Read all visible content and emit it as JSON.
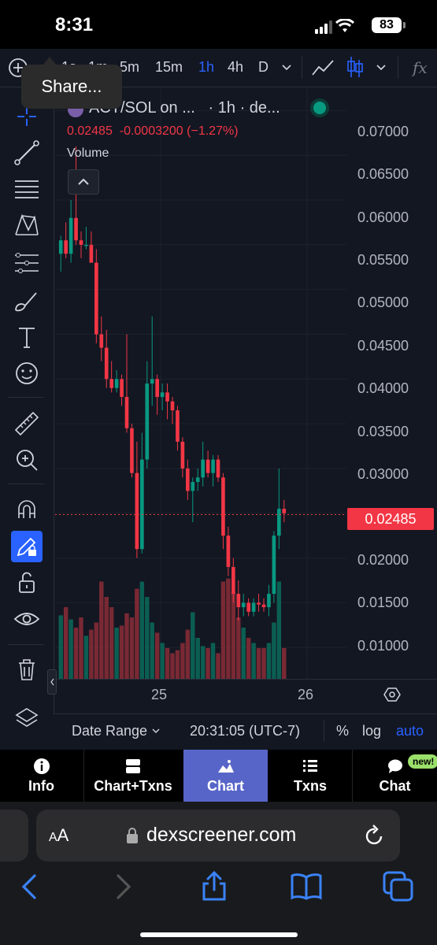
{
  "status_bar": {
    "time": "8:31",
    "battery": "83"
  },
  "toolbar": {
    "timeframes": [
      {
        "label": "1s",
        "active": false
      },
      {
        "label": "1m",
        "active": false
      },
      {
        "label": "5m",
        "active": false
      },
      {
        "label": "15m",
        "active": false
      },
      {
        "label": "1h",
        "active": true
      },
      {
        "label": "4h",
        "active": false
      },
      {
        "label": "D",
        "active": false
      }
    ],
    "fx_label": "fx"
  },
  "tooltip": {
    "text": "Share..."
  },
  "legend": {
    "title": "ACT/SOL on ...",
    "interval": "· 1h · de...",
    "last": "0.02485",
    "change": "-0.0003200",
    "change_pct": "(−1.27%)",
    "volume_label": "Volume"
  },
  "price_axis": [
    "0.07000",
    "0.06500",
    "0.06000",
    "0.05500",
    "0.05000",
    "0.04500",
    "0.04000",
    "0.03500",
    "0.03000",
    "0.02500",
    "0.02000",
    "0.01500",
    "0.01000"
  ],
  "current_price": "0.02485",
  "time_axis": [
    "25",
    "26"
  ],
  "bottom_bar": {
    "date_range": "Date Range",
    "clock": "20:31:05 (UTC-7)",
    "percent": "%",
    "log": "log",
    "auto": "auto"
  },
  "colors": {
    "up": "#089981",
    "down": "#f23645",
    "accent": "#2962ff",
    "tab_active": "#5865c8",
    "background": "#131722"
  },
  "chart_data": {
    "type": "candlestick",
    "ylim": [
      0.0065,
      0.0725
    ],
    "candles": [
      {
        "o": 0.054,
        "h": 0.056,
        "l": 0.052,
        "c": 0.0555
      },
      {
        "o": 0.0555,
        "h": 0.0575,
        "l": 0.0535,
        "c": 0.054
      },
      {
        "o": 0.054,
        "h": 0.06,
        "l": 0.053,
        "c": 0.058
      },
      {
        "o": 0.058,
        "h": 0.066,
        "l": 0.055,
        "c": 0.0555
      },
      {
        "o": 0.0555,
        "h": 0.0565,
        "l": 0.0535,
        "c": 0.055
      },
      {
        "o": 0.055,
        "h": 0.057,
        "l": 0.0545,
        "c": 0.055
      },
      {
        "o": 0.055,
        "h": 0.0565,
        "l": 0.053,
        "c": 0.053
      },
      {
        "o": 0.053,
        "h": 0.0545,
        "l": 0.044,
        "c": 0.045
      },
      {
        "o": 0.045,
        "h": 0.047,
        "l": 0.042,
        "c": 0.0435
      },
      {
        "o": 0.0435,
        "h": 0.0455,
        "l": 0.039,
        "c": 0.04
      },
      {
        "o": 0.04,
        "h": 0.042,
        "l": 0.0385,
        "c": 0.039
      },
      {
        "o": 0.039,
        "h": 0.041,
        "l": 0.0385,
        "c": 0.04
      },
      {
        "o": 0.04,
        "h": 0.0405,
        "l": 0.037,
        "c": 0.038
      },
      {
        "o": 0.038,
        "h": 0.045,
        "l": 0.034,
        "c": 0.0345
      },
      {
        "o": 0.0345,
        "h": 0.035,
        "l": 0.029,
        "c": 0.0295
      },
      {
        "o": 0.0295,
        "h": 0.033,
        "l": 0.02,
        "c": 0.021
      },
      {
        "o": 0.021,
        "h": 0.034,
        "l": 0.0205,
        "c": 0.031
      },
      {
        "o": 0.031,
        "h": 0.042,
        "l": 0.03,
        "c": 0.0395
      },
      {
        "o": 0.0395,
        "h": 0.047,
        "l": 0.037,
        "c": 0.04
      },
      {
        "o": 0.04,
        "h": 0.0405,
        "l": 0.036,
        "c": 0.038
      },
      {
        "o": 0.038,
        "h": 0.0395,
        "l": 0.0365,
        "c": 0.0385
      },
      {
        "o": 0.0385,
        "h": 0.0395,
        "l": 0.0355,
        "c": 0.0375
      },
      {
        "o": 0.0375,
        "h": 0.038,
        "l": 0.035,
        "c": 0.0365
      },
      {
        "o": 0.0365,
        "h": 0.037,
        "l": 0.032,
        "c": 0.033
      },
      {
        "o": 0.033,
        "h": 0.0335,
        "l": 0.029,
        "c": 0.03
      },
      {
        "o": 0.03,
        "h": 0.031,
        "l": 0.0265,
        "c": 0.0275
      },
      {
        "o": 0.0275,
        "h": 0.029,
        "l": 0.024,
        "c": 0.0285
      },
      {
        "o": 0.0285,
        "h": 0.03,
        "l": 0.0275,
        "c": 0.029
      },
      {
        "o": 0.029,
        "h": 0.033,
        "l": 0.028,
        "c": 0.031
      },
      {
        "o": 0.031,
        "h": 0.032,
        "l": 0.029,
        "c": 0.0295
      },
      {
        "o": 0.0295,
        "h": 0.0315,
        "l": 0.028,
        "c": 0.031
      },
      {
        "o": 0.031,
        "h": 0.0315,
        "l": 0.0285,
        "c": 0.029
      },
      {
        "o": 0.029,
        "h": 0.0295,
        "l": 0.021,
        "c": 0.0225
      },
      {
        "o": 0.0225,
        "h": 0.0235,
        "l": 0.018,
        "c": 0.019
      },
      {
        "o": 0.019,
        "h": 0.02,
        "l": 0.015,
        "c": 0.016
      },
      {
        "o": 0.016,
        "h": 0.0175,
        "l": 0.013,
        "c": 0.0145
      },
      {
        "o": 0.0145,
        "h": 0.016,
        "l": 0.0135,
        "c": 0.015
      },
      {
        "o": 0.015,
        "h": 0.0155,
        "l": 0.0135,
        "c": 0.014
      },
      {
        "o": 0.014,
        "h": 0.0155,
        "l": 0.0135,
        "c": 0.015
      },
      {
        "o": 0.015,
        "h": 0.016,
        "l": 0.014,
        "c": 0.0148
      },
      {
        "o": 0.0148,
        "h": 0.0155,
        "l": 0.014,
        "c": 0.0145
      },
      {
        "o": 0.0145,
        "h": 0.017,
        "l": 0.0135,
        "c": 0.016
      },
      {
        "o": 0.016,
        "h": 0.023,
        "l": 0.015,
        "c": 0.0225
      },
      {
        "o": 0.0225,
        "h": 0.03,
        "l": 0.021,
        "c": 0.0255
      },
      {
        "o": 0.0255,
        "h": 0.0265,
        "l": 0.024,
        "c": 0.025
      }
    ],
    "volumes": [
      0.62,
      0.7,
      0.58,
      0.5,
      0.6,
      0.42,
      0.48,
      0.55,
      0.95,
      0.8,
      0.7,
      0.5,
      0.52,
      0.64,
      0.6,
      0.88,
      0.95,
      0.8,
      0.55,
      0.45,
      0.35,
      0.3,
      0.25,
      0.28,
      0.35,
      0.48,
      0.65,
      0.4,
      0.32,
      0.3,
      0.35,
      0.25,
      0.95,
      0.98,
      0.85,
      0.6,
      0.5,
      0.4,
      0.35,
      0.3,
      0.3,
      0.35,
      0.55,
      0.95,
      0.3
    ]
  }
}
